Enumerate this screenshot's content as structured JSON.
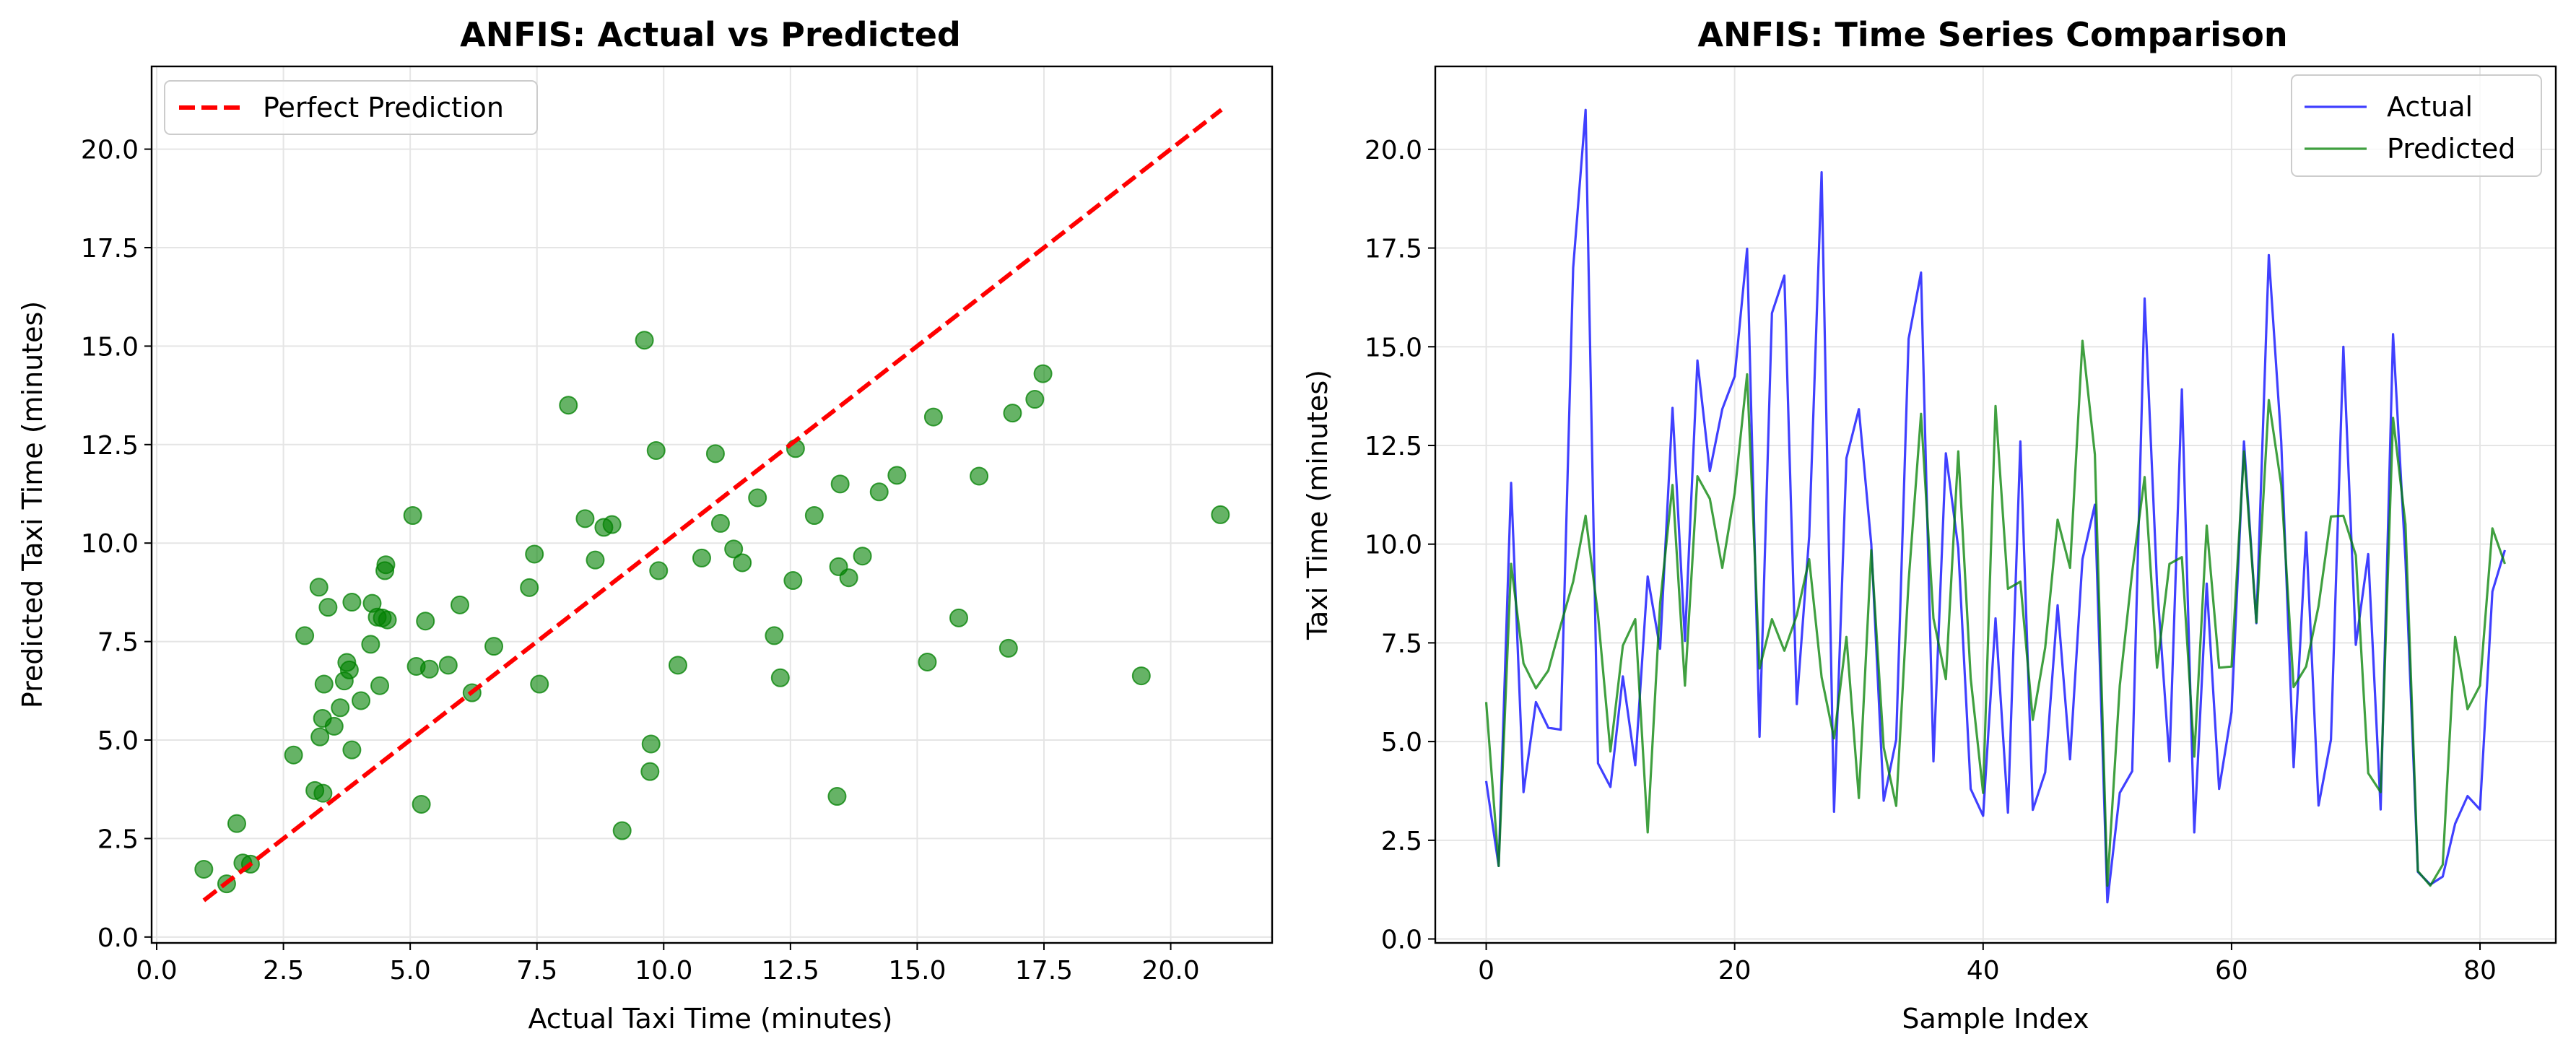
{
  "colors": {
    "scatter": "#008000",
    "perfect_line": "#ff0000",
    "actual": "#0000ff",
    "predicted": "#008000",
    "grid": "#e5e5e5"
  },
  "chart_data": [
    {
      "type": "scatter",
      "title": "ANFIS: Actual vs Predicted",
      "xlabel": "Actual Taxi Time (minutes)",
      "ylabel": "Predicted Taxi Time (minutes)",
      "xlim": [
        -0.1,
        22.0
      ],
      "ylim": [
        -0.15,
        22.1
      ],
      "xticks": [
        0.0,
        2.5,
        5.0,
        7.5,
        10.0,
        12.5,
        15.0,
        17.5,
        20.0
      ],
      "yticks": [
        0.0,
        2.5,
        5.0,
        7.5,
        10.0,
        12.5,
        15.0,
        17.5,
        20.0
      ],
      "tick_labels_x": [
        "0.0",
        "2.5",
        "5.0",
        "7.5",
        "10.0",
        "12.5",
        "15.0",
        "17.5",
        "20.0"
      ],
      "tick_labels_y": [
        "0.0",
        "2.5",
        "5.0",
        "7.5",
        "10.0",
        "12.5",
        "15.0",
        "17.5",
        "20.0"
      ],
      "grid": true,
      "legend": {
        "placement": "upper-left",
        "entries": [
          {
            "label": "Perfect Prediction",
            "style": "dashed-line"
          }
        ]
      },
      "perfect_line": {
        "x": [
          0.93,
          21.0
        ],
        "y": [
          0.93,
          21.0
        ]
      },
      "points": [
        [
          0.93,
          1.72
        ],
        [
          1.38,
          1.35
        ],
        [
          1.58,
          2.88
        ],
        [
          1.7,
          1.88
        ],
        [
          1.85,
          1.85
        ],
        [
          2.7,
          4.62
        ],
        [
          2.92,
          7.65
        ],
        [
          3.12,
          3.72
        ],
        [
          3.2,
          8.88
        ],
        [
          3.22,
          5.08
        ],
        [
          3.28,
          3.65
        ],
        [
          3.27,
          5.55
        ],
        [
          3.3,
          6.42
        ],
        [
          3.38,
          8.37
        ],
        [
          3.5,
          5.35
        ],
        [
          3.62,
          5.82
        ],
        [
          3.7,
          6.5
        ],
        [
          3.75,
          6.97
        ],
        [
          3.8,
          6.78
        ],
        [
          3.85,
          4.75
        ],
        [
          3.85,
          8.5
        ],
        [
          4.03,
          6.0
        ],
        [
          4.22,
          7.43
        ],
        [
          4.25,
          8.47
        ],
        [
          4.35,
          8.12
        ],
        [
          4.4,
          6.38
        ],
        [
          4.45,
          8.1
        ],
        [
          4.5,
          9.3
        ],
        [
          4.52,
          9.45
        ],
        [
          4.55,
          8.05
        ],
        [
          5.05,
          10.7
        ],
        [
          5.12,
          6.87
        ],
        [
          5.22,
          3.37
        ],
        [
          5.3,
          8.02
        ],
        [
          5.38,
          6.8
        ],
        [
          5.75,
          6.9
        ],
        [
          5.98,
          8.43
        ],
        [
          6.22,
          6.2
        ],
        [
          6.65,
          7.38
        ],
        [
          7.35,
          8.87
        ],
        [
          7.45,
          9.72
        ],
        [
          7.55,
          6.42
        ],
        [
          8.12,
          13.5
        ],
        [
          8.45,
          10.62
        ],
        [
          8.65,
          9.57
        ],
        [
          8.82,
          10.4
        ],
        [
          8.98,
          10.47
        ],
        [
          9.18,
          2.7
        ],
        [
          9.62,
          15.15
        ],
        [
          9.73,
          4.2
        ],
        [
          9.75,
          4.9
        ],
        [
          9.85,
          12.35
        ],
        [
          9.9,
          9.3
        ],
        [
          10.28,
          6.9
        ],
        [
          10.75,
          9.62
        ],
        [
          11.02,
          12.27
        ],
        [
          11.12,
          10.5
        ],
        [
          11.38,
          9.85
        ],
        [
          11.55,
          9.5
        ],
        [
          11.85,
          11.15
        ],
        [
          12.18,
          7.65
        ],
        [
          12.3,
          6.58
        ],
        [
          12.55,
          9.05
        ],
        [
          12.6,
          12.4
        ],
        [
          12.97,
          10.7
        ],
        [
          13.42,
          3.57
        ],
        [
          13.45,
          9.4
        ],
        [
          13.48,
          11.5
        ],
        [
          13.65,
          9.12
        ],
        [
          13.92,
          9.67
        ],
        [
          14.25,
          11.3
        ],
        [
          14.6,
          11.72
        ],
        [
          15.2,
          6.98
        ],
        [
          15.32,
          13.2
        ],
        [
          15.82,
          8.1
        ],
        [
          16.22,
          11.7
        ],
        [
          16.8,
          7.33
        ],
        [
          16.88,
          13.3
        ],
        [
          17.32,
          13.65
        ],
        [
          17.48,
          14.3
        ],
        [
          19.42,
          6.63
        ],
        [
          20.98,
          10.72
        ]
      ]
    },
    {
      "type": "line",
      "title": "ANFIS: Time Series Comparison",
      "xlabel": "Sample Index",
      "ylabel": "Taxi Time (minutes)",
      "xlim": [
        -4.1,
        86.1
      ],
      "ylim": [
        -0.1,
        22.1
      ],
      "xticks": [
        0,
        20,
        40,
        60,
        80
      ],
      "yticks": [
        0.0,
        2.5,
        5.0,
        7.5,
        10.0,
        12.5,
        15.0,
        17.5,
        20.0
      ],
      "tick_labels_x": [
        "0",
        "20",
        "40",
        "60",
        "80"
      ],
      "tick_labels_y": [
        "0.0",
        "2.5",
        "5.0",
        "7.5",
        "10.0",
        "12.5",
        "15.0",
        "17.5",
        "20.0"
      ],
      "grid": true,
      "legend": {
        "placement": "upper-right"
      },
      "series": [
        {
          "name": "Actual",
          "values": [
            4.0,
            1.85,
            11.55,
            3.72,
            6.0,
            5.35,
            5.3,
            17.0,
            21.0,
            4.45,
            3.85,
            6.65,
            4.4,
            9.18,
            7.35,
            13.45,
            7.55,
            14.65,
            11.85,
            13.42,
            14.25,
            17.48,
            5.12,
            15.85,
            16.8,
            5.95,
            10.2,
            19.42,
            3.22,
            12.18,
            13.42,
            10.0,
            3.5,
            5.05,
            15.2,
            16.88,
            4.5,
            12.3,
            9.9,
            3.8,
            3.12,
            8.12,
            3.2,
            12.6,
            3.27,
            4.22,
            8.45,
            4.55,
            9.62,
            11.0,
            0.93,
            3.7,
            4.25,
            16.22,
            8.98,
            4.5,
            13.92,
            2.7,
            9.0,
            3.8,
            5.75,
            12.6,
            8.0,
            17.32,
            12.6,
            4.35,
            10.3,
            3.38,
            5.05,
            15.0,
            7.45,
            9.75,
            3.28,
            15.32,
            9.6,
            1.7,
            1.38,
            1.58,
            2.92,
            3.62,
            3.28,
            8.8,
            9.85
          ]
        },
        {
          "name": "Predicted",
          "values": [
            6.0,
            1.85,
            9.5,
            6.98,
            6.35,
            6.8,
            7.95,
            9.05,
            10.72,
            8.2,
            4.75,
            7.43,
            8.1,
            2.7,
            8.5,
            11.5,
            6.42,
            11.72,
            11.15,
            9.4,
            11.3,
            14.3,
            6.85,
            8.1,
            7.3,
            8.2,
            9.62,
            6.63,
            5.08,
            7.65,
            3.57,
            9.85,
            4.85,
            3.37,
            9.05,
            13.3,
            8.12,
            6.58,
            12.35,
            6.6,
            3.7,
            13.5,
            8.87,
            9.05,
            5.55,
            7.38,
            10.62,
            9.4,
            15.15,
            12.27,
            1.35,
            6.42,
            9.3,
            11.7,
            6.87,
            9.5,
            9.67,
            4.62,
            10.47,
            6.87,
            6.9,
            12.35,
            8.02,
            13.65,
            11.5,
            6.38,
            6.9,
            8.43,
            10.7,
            10.72,
            9.72,
            4.2,
            3.72,
            13.2,
            10.5,
            1.72,
            1.35,
            1.88,
            7.65,
            5.82,
            6.42,
            10.4,
            9.5
          ]
        }
      ]
    }
  ]
}
